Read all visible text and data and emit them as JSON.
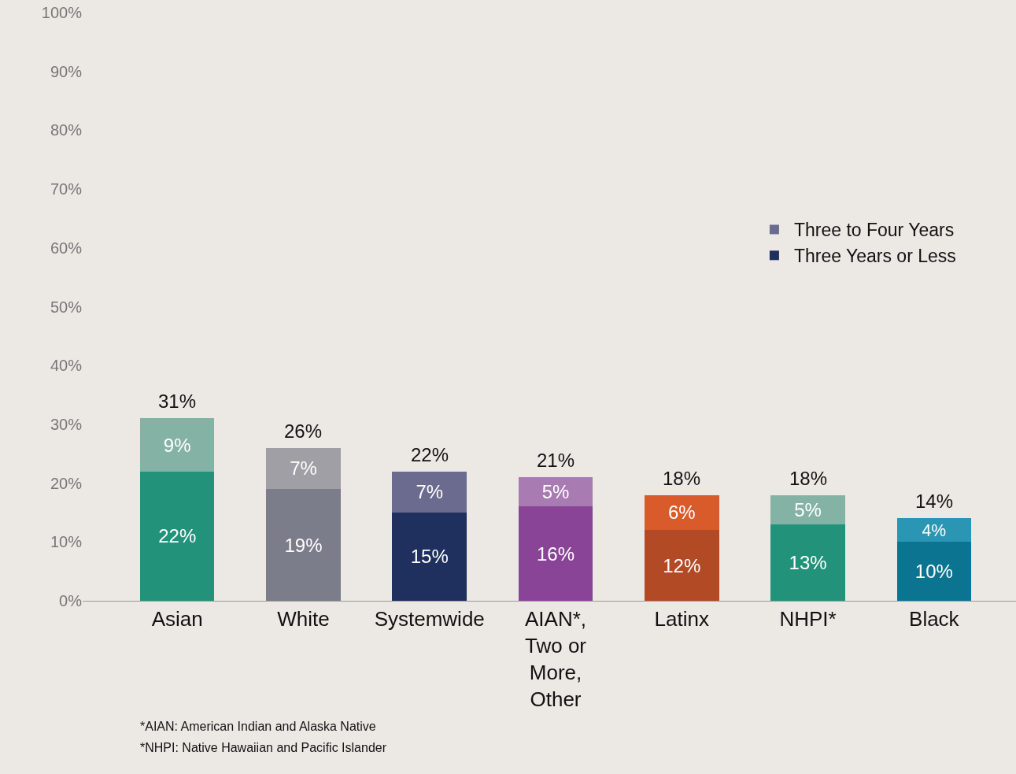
{
  "chart_data": {
    "type": "bar",
    "stacked": true,
    "categories": [
      "Asian",
      "White",
      "Systemwide",
      "AIAN*, Two or More, Other",
      "Latinx",
      "NHPI*",
      "Black"
    ],
    "series": [
      {
        "name": "Three Years or Less",
        "color": "#1f2f5e",
        "colors": [
          "#22937a",
          "#7c7d8a",
          "#1f2f5e",
          "#8a4497",
          "#b24a26",
          "#22937a",
          "#0b7490"
        ],
        "values": [
          22,
          19,
          15,
          16,
          12,
          13,
          10
        ],
        "value_labels": [
          "22%",
          "19%",
          "15%",
          "16%",
          "12%",
          "13%",
          "10%"
        ]
      },
      {
        "name": "Three to Four Years",
        "color": "#6b6b8f",
        "colors": [
          "#84b3a5",
          "#a09fa6",
          "#6b6b8f",
          "#a87bb3",
          "#d95a2b",
          "#84b3a5",
          "#2a96b4"
        ],
        "values": [
          9,
          7,
          7,
          5,
          6,
          5,
          4
        ],
        "value_labels": [
          "9%",
          "7%",
          "7%",
          "5%",
          "6%",
          "5%",
          "4%"
        ]
      }
    ],
    "totals": [
      "31%",
      "26%",
      "22%",
      "21%",
      "18%",
      "18%",
      "14%"
    ],
    "ylim": [
      0,
      100
    ],
    "yticks": [
      {
        "value": 0,
        "label": "0%"
      },
      {
        "value": 10,
        "label": "10%"
      },
      {
        "value": 20,
        "label": "20%"
      },
      {
        "value": 30,
        "label": "30%"
      },
      {
        "value": 40,
        "label": "40%"
      },
      {
        "value": 50,
        "label": "50%"
      },
      {
        "value": 60,
        "label": "60%"
      },
      {
        "value": 70,
        "label": "70%"
      },
      {
        "value": 80,
        "label": "80%"
      },
      {
        "value": 90,
        "label": "90%"
      },
      {
        "value": 100,
        "label": "100%"
      }
    ],
    "grid": false,
    "legend": "right",
    "annotations": [
      "*AIAN: American Indian and Alaska Native",
      "*NHPI: Native Hawaiian and Pacific Islander"
    ]
  }
}
